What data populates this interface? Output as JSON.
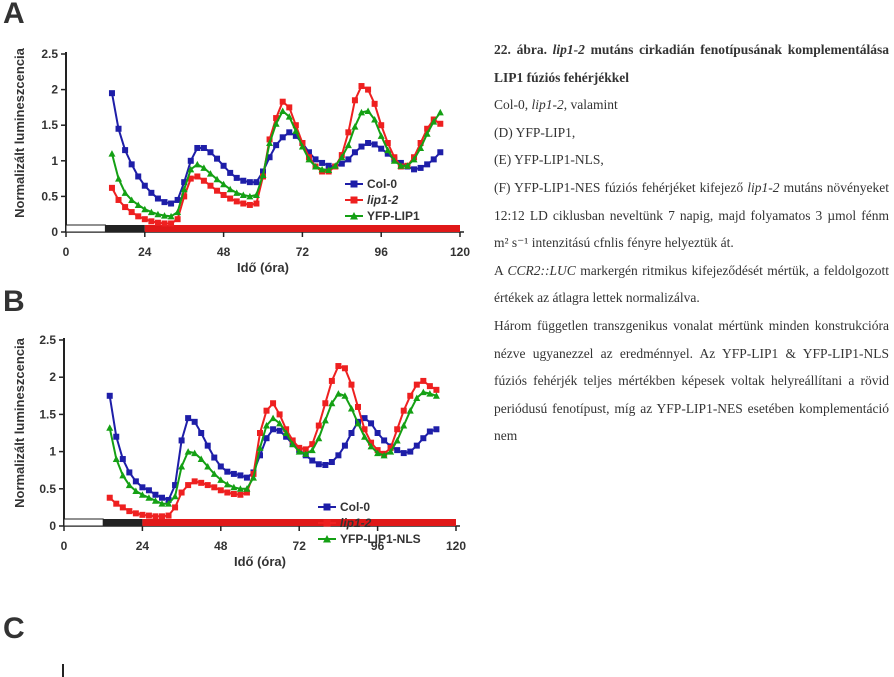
{
  "panels": {
    "a": "A",
    "b": "B",
    "c": "C"
  },
  "caption": {
    "title_prefix": "22. ábra.",
    "title_gene": "lip1-2",
    "title_rest": "mutáns cirkadián fenotípusának komplementálása LIP1 fúziós fehérjékkel",
    "line1_pre": "Col-0,",
    "line1_gene": "lip1-2",
    "line1_post": ", valamint",
    "line_d": "(D) YFP-LIP1,",
    "line_e": "(E) YFP-LIP1-NLS,",
    "line_f_pre": "(F) YFP-LIP1-NES fúziós fehérjéket kifejező",
    "line_f_gene": "lip1-2",
    "line_f_post": "mutáns növényeket 12:12 LD ciklusban neveltünk 7 napig, majd folyamatos 3 µmol fénm m² s⁻¹ intenzitású cfnlis fényre helyeztük át.",
    "para2_pre": "A",
    "para2_gene": "CCR2::LUC",
    "para2_post": "markergén ritmikus kifejeződését mértük, a feldolgozott értékek az átlagra lettek normalizálva.",
    "para3": "Három független transzgenikus vonalat mértünk minden konstrukcióra nézve ugyanezzel az eredménnyel. Az YFP-LIP1 & YFP-LIP1-NLS fúziós fehérjék teljes mértékben képesek voltak helyreállítani a rövid periódusú fenotípust, míg az YFP-LIP1-NES esetében komplementáció nem"
  },
  "chart_data": [
    {
      "type": "line",
      "panel": "A",
      "xlabel": "Idő (óra)",
      "ylabel": "Normalizált lumineszcencia",
      "xlim": [
        0,
        120
      ],
      "ylim": [
        0,
        2.5
      ],
      "xticks": [
        0,
        24,
        48,
        72,
        96,
        120
      ],
      "yticks": [
        "0",
        "0.5",
        "1",
        "1.5",
        "2",
        "2.5"
      ],
      "legend_position": "right-middle",
      "light_bar": {
        "white": [
          0,
          12
        ],
        "black": [
          12,
          24
        ],
        "red": [
          24,
          120
        ]
      },
      "x": [
        14,
        16,
        18,
        20,
        22,
        24,
        26,
        28,
        30,
        32,
        34,
        36,
        38,
        40,
        42,
        44,
        46,
        48,
        50,
        52,
        54,
        56,
        58,
        60,
        62,
        64,
        66,
        68,
        70,
        72,
        74,
        76,
        78,
        80,
        82,
        84,
        86,
        88,
        90,
        92,
        94,
        96,
        98,
        100,
        102,
        104,
        106,
        108,
        110,
        112,
        114
      ],
      "series": [
        {
          "name": "Col-0",
          "color": "#1e1ea8",
          "marker": "square",
          "values": [
            1.95,
            1.45,
            1.15,
            0.95,
            0.78,
            0.65,
            0.55,
            0.47,
            0.42,
            0.4,
            0.45,
            0.7,
            1.0,
            1.18,
            1.18,
            1.12,
            1.03,
            0.93,
            0.83,
            0.76,
            0.72,
            0.7,
            0.7,
            0.85,
            1.05,
            1.22,
            1.33,
            1.4,
            1.35,
            1.25,
            1.12,
            1.02,
            0.97,
            0.93,
            0.92,
            0.96,
            1.02,
            1.12,
            1.2,
            1.25,
            1.23,
            1.17,
            1.1,
            1.02,
            0.97,
            0.92,
            0.88,
            0.9,
            0.95,
            1.02,
            1.12
          ]
        },
        {
          "name": "lip1-2",
          "color": "#ee2020",
          "marker": "square",
          "values": [
            0.62,
            0.45,
            0.35,
            0.28,
            0.22,
            0.18,
            0.15,
            0.13,
            0.12,
            0.12,
            0.18,
            0.5,
            0.75,
            0.78,
            0.72,
            0.65,
            0.58,
            0.52,
            0.47,
            0.43,
            0.4,
            0.38,
            0.4,
            0.78,
            1.3,
            1.6,
            1.83,
            1.75,
            1.5,
            1.25,
            1.05,
            0.92,
            0.85,
            0.85,
            0.92,
            1.08,
            1.4,
            1.85,
            2.05,
            2.0,
            1.8,
            1.5,
            1.25,
            1.05,
            0.92,
            0.93,
            1.05,
            1.25,
            1.45,
            1.58,
            1.52
          ]
        },
        {
          "name": "YFP-LIP1",
          "color": "#14a014",
          "marker": "triangle",
          "values": [
            1.1,
            0.75,
            0.55,
            0.45,
            0.38,
            0.32,
            0.28,
            0.25,
            0.23,
            0.22,
            0.28,
            0.6,
            0.88,
            0.95,
            0.9,
            0.82,
            0.74,
            0.67,
            0.6,
            0.55,
            0.52,
            0.5,
            0.52,
            0.8,
            1.25,
            1.52,
            1.7,
            1.62,
            1.42,
            1.2,
            1.02,
            0.92,
            0.88,
            0.87,
            0.93,
            1.05,
            1.22,
            1.48,
            1.68,
            1.7,
            1.58,
            1.35,
            1.15,
            1.0,
            0.93,
            0.93,
            1.02,
            1.18,
            1.38,
            1.55,
            1.68
          ]
        }
      ]
    },
    {
      "type": "line",
      "panel": "B",
      "xlabel": "Idő (óra)",
      "ylabel": "Normalizált lumineszcencia",
      "xlim": [
        0,
        120
      ],
      "ylim": [
        0,
        2.5
      ],
      "xticks": [
        0,
        24,
        48,
        72,
        96,
        120
      ],
      "yticks": [
        "0",
        "0.5",
        "1",
        "1.5",
        "2",
        "2.5"
      ],
      "legend_position": "right-bottom",
      "light_bar": {
        "white": [
          0,
          12
        ],
        "black": [
          12,
          24
        ],
        "red": [
          24,
          120
        ]
      },
      "x": [
        14,
        16,
        18,
        20,
        22,
        24,
        26,
        28,
        30,
        32,
        34,
        36,
        38,
        40,
        42,
        44,
        46,
        48,
        50,
        52,
        54,
        56,
        58,
        60,
        62,
        64,
        66,
        68,
        70,
        72,
        74,
        76,
        78,
        80,
        82,
        84,
        86,
        88,
        90,
        92,
        94,
        96,
        98,
        100,
        102,
        104,
        106,
        108,
        110,
        112,
        114
      ],
      "series": [
        {
          "name": "Col-0",
          "color": "#1e1ea8",
          "marker": "square",
          "values": [
            1.75,
            1.2,
            0.9,
            0.72,
            0.6,
            0.52,
            0.48,
            0.42,
            0.38,
            0.35,
            0.55,
            1.15,
            1.45,
            1.4,
            1.25,
            1.08,
            0.92,
            0.8,
            0.73,
            0.7,
            0.68,
            0.65,
            0.72,
            0.95,
            1.18,
            1.3,
            1.28,
            1.2,
            1.1,
            1.02,
            0.95,
            0.88,
            0.83,
            0.82,
            0.86,
            0.95,
            1.08,
            1.25,
            1.4,
            1.45,
            1.38,
            1.25,
            1.15,
            1.07,
            1.02,
            0.98,
            1.0,
            1.08,
            1.18,
            1.27,
            1.3
          ]
        },
        {
          "name": "lip1-2",
          "color": "#ee2020",
          "marker": "square",
          "values": [
            0.38,
            0.3,
            0.25,
            0.2,
            0.17,
            0.15,
            0.14,
            0.13,
            0.13,
            0.14,
            0.25,
            0.45,
            0.55,
            0.6,
            0.58,
            0.55,
            0.52,
            0.48,
            0.45,
            0.43,
            0.42,
            0.45,
            0.7,
            1.25,
            1.55,
            1.65,
            1.5,
            1.3,
            1.15,
            1.05,
            1.03,
            1.1,
            1.35,
            1.65,
            1.95,
            2.15,
            2.12,
            1.9,
            1.6,
            1.3,
            1.12,
            1.02,
            0.97,
            1.05,
            1.3,
            1.55,
            1.75,
            1.9,
            1.95,
            1.88,
            1.83
          ]
        },
        {
          "name": "YFP-LIP1-NLS",
          "color": "#14a014",
          "marker": "triangle",
          "values": [
            1.32,
            0.9,
            0.68,
            0.55,
            0.47,
            0.42,
            0.38,
            0.34,
            0.3,
            0.3,
            0.4,
            0.8,
            1.0,
            0.98,
            0.9,
            0.8,
            0.7,
            0.62,
            0.56,
            0.52,
            0.5,
            0.5,
            0.65,
            1.05,
            1.35,
            1.45,
            1.38,
            1.25,
            1.1,
            1.0,
            0.97,
            1.02,
            1.18,
            1.42,
            1.65,
            1.78,
            1.75,
            1.58,
            1.38,
            1.2,
            1.07,
            0.98,
            0.95,
            1.0,
            1.15,
            1.35,
            1.55,
            1.72,
            1.8,
            1.78,
            1.75
          ]
        }
      ]
    }
  ]
}
